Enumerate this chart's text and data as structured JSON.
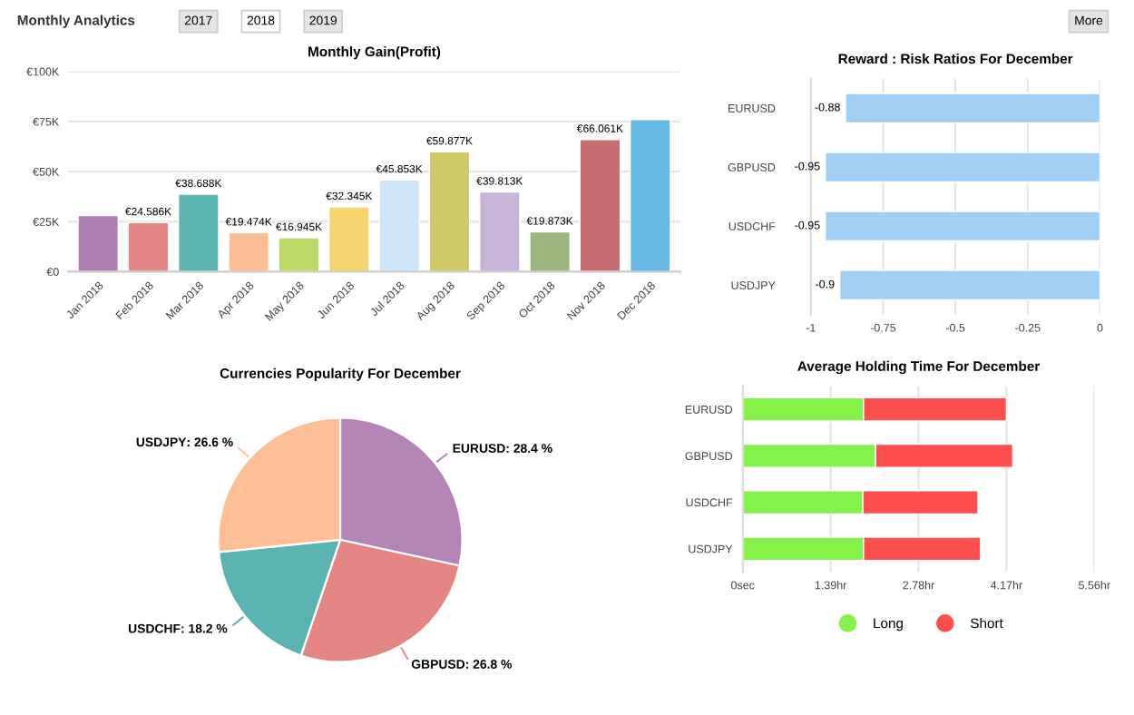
{
  "chart_data": [
    {
      "type": "other",
      "title": "Monthly Analytics",
      "annotations": [
        "2017",
        "2018",
        "2019",
        "More"
      ]
    },
    {
      "type": "bar",
      "title": "Monthly Gain(Profit)",
      "categories": [
        "Jan 2018",
        "Feb 2018",
        "Mar 2018",
        "Apr 2018",
        "May 2018",
        "Jun 2018",
        "Jul 2018",
        "Aug 2018",
        "Sep 2018",
        "Oct 2018",
        "Nov 2018",
        "Dec 2018"
      ],
      "values": [
        28,
        24.586,
        38.688,
        19.474,
        16.945,
        32.345,
        45.853,
        59.877,
        39.813,
        19.873,
        66.061,
        76
      ],
      "colors": [
        "#b07fb4",
        "#e38683",
        "#5bb5b1",
        "#fdbd92",
        "#bcd866",
        "#f6d36f",
        "#cfe6f8",
        "#cfc968",
        "#c7b4d8",
        "#9ab67c",
        "#c76d72",
        "#68b9e3"
      ],
      "value_labels": [
        null,
        "€24.586K",
        "€38.688K",
        "€19.474K",
        "€16.945K",
        "€32.345K",
        "€45.853K",
        "€59.877K",
        "€39.813K",
        "€19.873K",
        "€66.061K",
        null
      ],
      "ylim": [
        0,
        100
      ],
      "yticks": [
        {
          "value": 0,
          "label": "€0"
        },
        {
          "value": 25,
          "label": "€25K"
        },
        {
          "value": 50,
          "label": "€50K"
        },
        {
          "value": 75,
          "label": "€75K"
        },
        {
          "value": 100,
          "label": "€100K"
        }
      ],
      "grid": "y"
    },
    {
      "type": "bar",
      "orientation": "horizontal",
      "title": "Reward : Risk Ratios For December",
      "categories": [
        "EURUSD",
        "GBPUSD",
        "USDCHF",
        "USDJPY"
      ],
      "values": [
        -0.88,
        -0.95,
        -0.95,
        -0.9
      ],
      "color": "#9fcff5",
      "data_labels": true,
      "xlim": [
        -1,
        0
      ],
      "xticks": [
        -1,
        -0.75,
        -0.5,
        -0.25,
        0
      ],
      "grid": "x"
    },
    {
      "type": "pie",
      "title": "Currencies Popularity For December",
      "categories": [
        "EURUSD",
        "GBPUSD",
        "USDCHF",
        "USDJPY"
      ],
      "values": [
        28.4,
        26.8,
        18.2,
        26.6
      ],
      "colors": [
        "#b384b5",
        "#e38683",
        "#58b3b1",
        "#fdbf93"
      ],
      "value_labels": [
        ": 28.4 %",
        ": 26.8 %",
        ": 18.2 %",
        ": 26.6 %"
      ]
    },
    {
      "type": "bar",
      "orientation": "horizontal",
      "stacked": true,
      "title": "Average Holding Time For December",
      "categories": [
        "EURUSD",
        "GBPUSD",
        "USDCHF",
        "USDJPY"
      ],
      "series": [
        {
          "name": "Long",
          "color": "#85f24a",
          "values": [
            1.91,
            2.1,
            1.9,
            1.91
          ]
        },
        {
          "name": "Short",
          "color": "#fd4d4d",
          "values": [
            2.26,
            2.17,
            1.82,
            1.85
          ]
        }
      ],
      "xlim": [
        0,
        5.56
      ],
      "xticks": [
        {
          "value": 0,
          "label": "0sec"
        },
        {
          "value": 1.39,
          "label": "1.39hr"
        },
        {
          "value": 2.78,
          "label": "2.78hr"
        },
        {
          "value": 4.17,
          "label": "4.17hr"
        },
        {
          "value": 5.56,
          "label": "5.56hr"
        }
      ],
      "grid": "x",
      "legend": "bottom"
    }
  ]
}
